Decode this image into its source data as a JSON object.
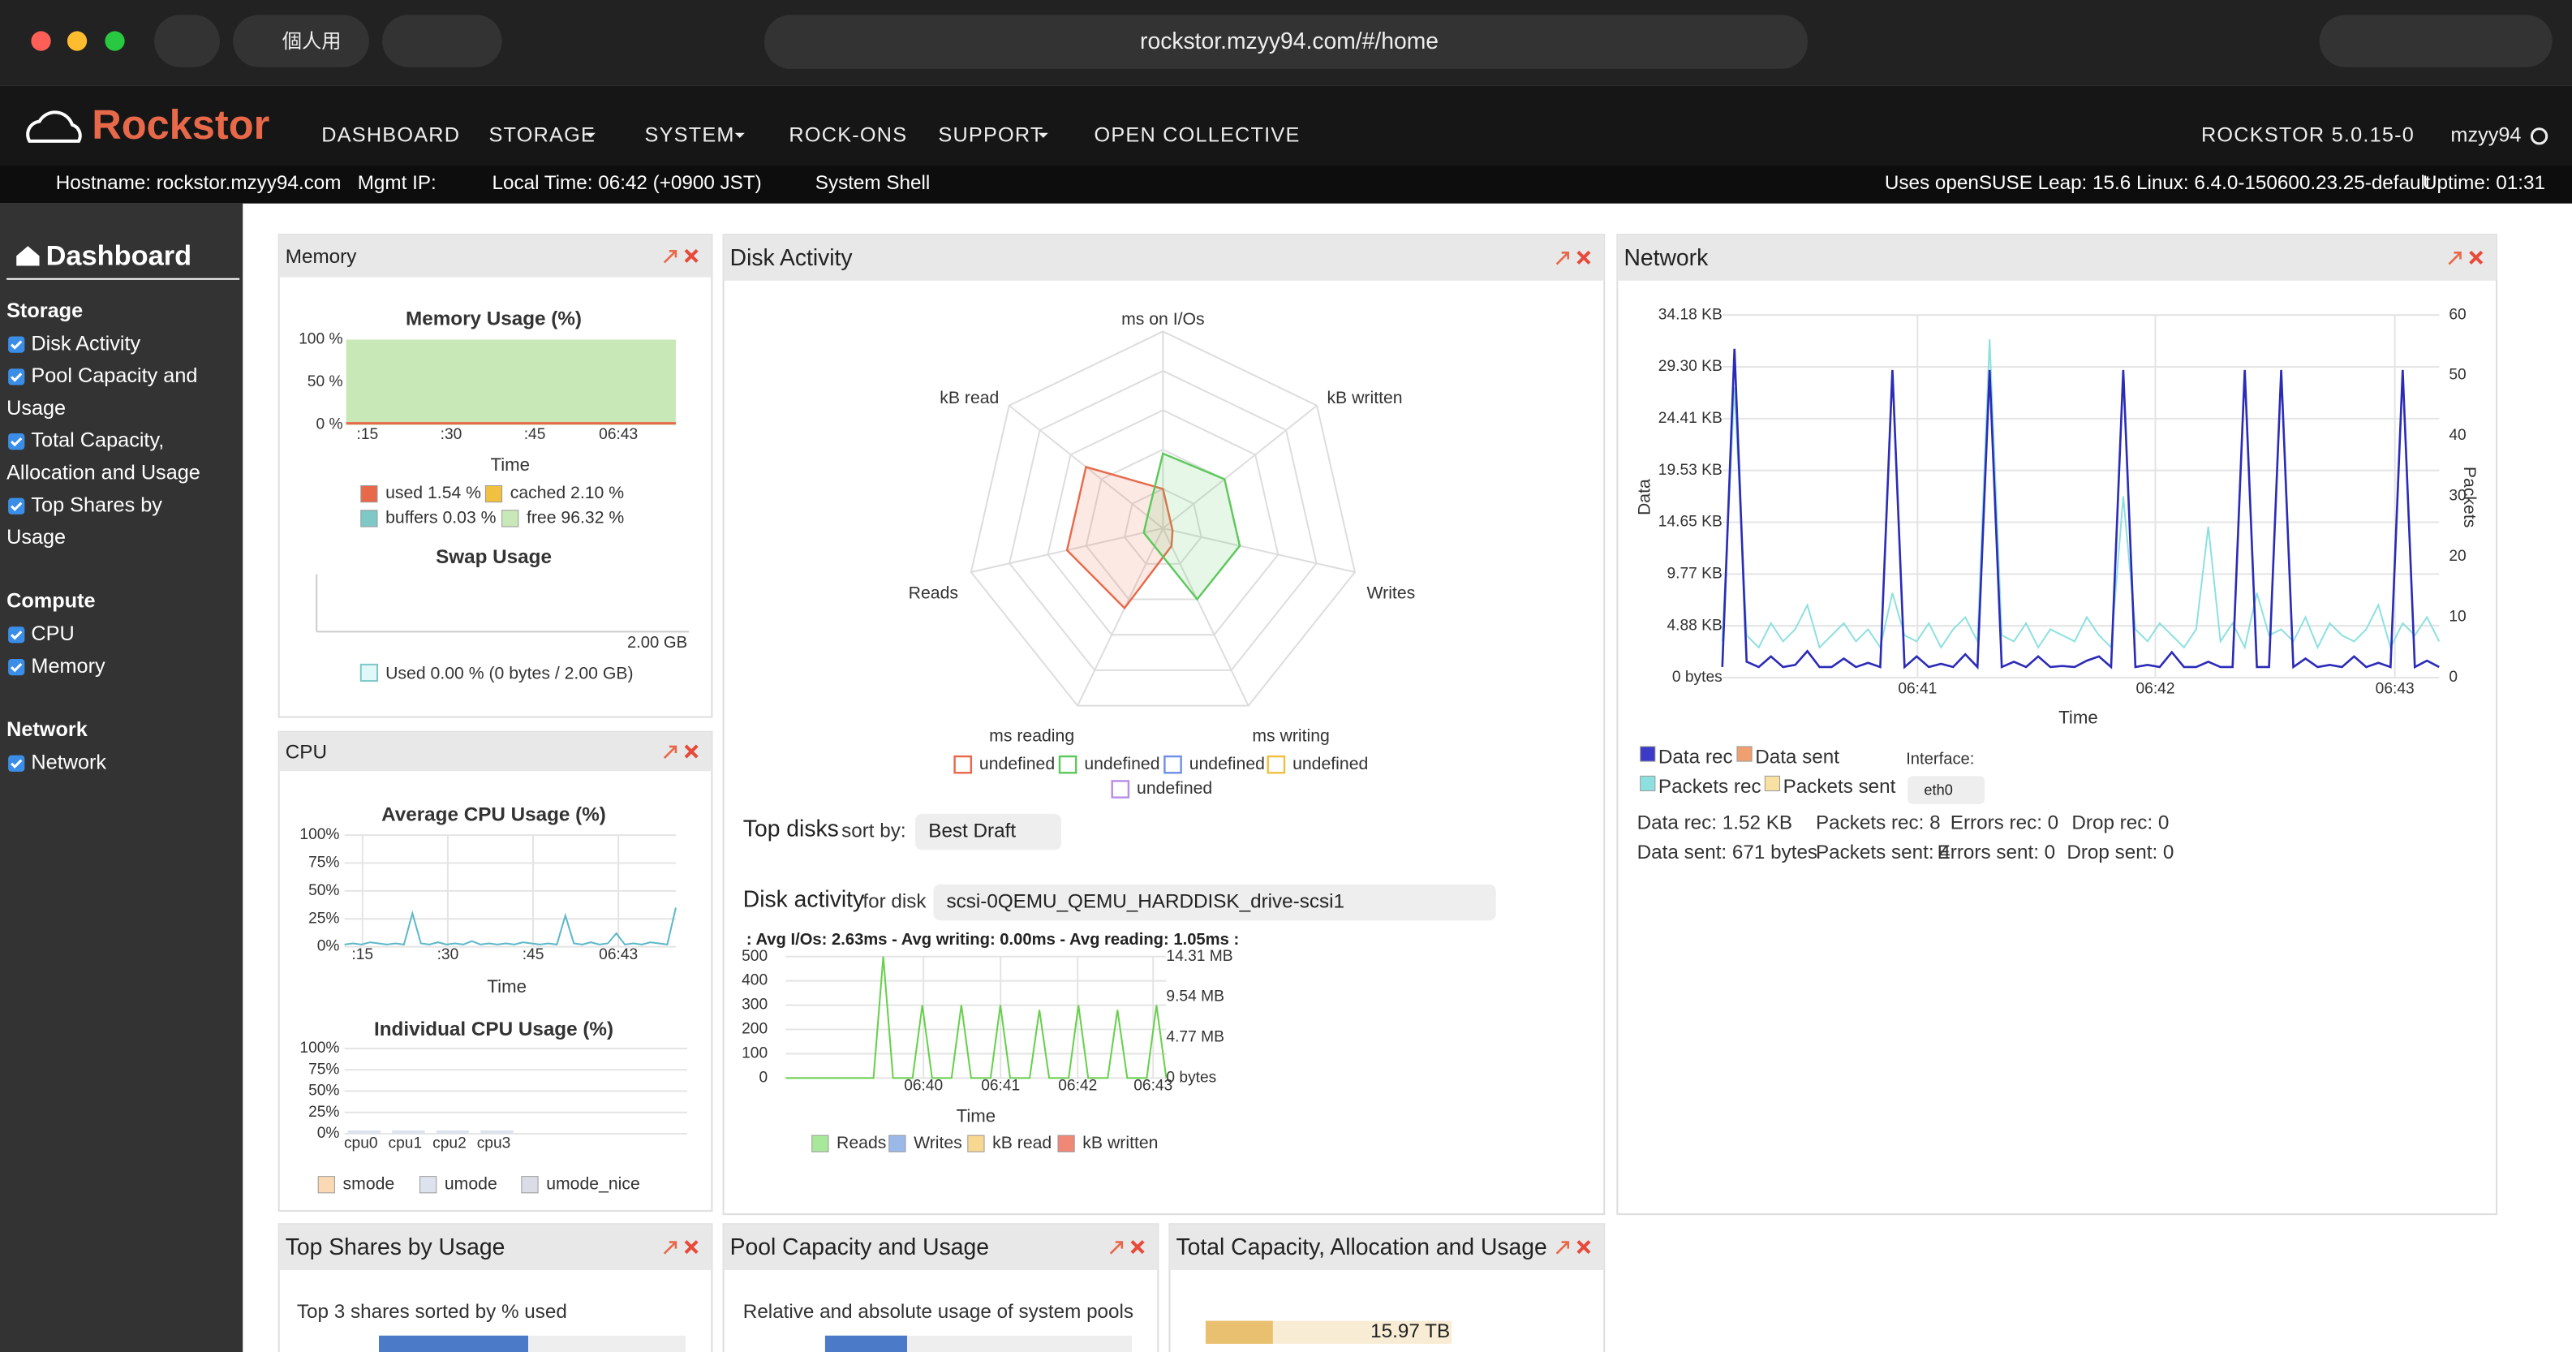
{
  "browser": {
    "profile": "個人用",
    "url": "rockstor.mzyy94.com/#/home"
  },
  "nav": {
    "brand": "Rockstor",
    "items": [
      "DASHBOARD",
      "STORAGE",
      "SYSTEM",
      "ROCK-ONS",
      "SUPPORT",
      "OPEN COLLECTIVE"
    ],
    "version": "ROCKSTOR 5.0.15-0",
    "user": "mzyy94"
  },
  "status": {
    "hostname": "Hostname: rockstor.mzyy94.com",
    "mgmt_ip": "Mgmt IP:",
    "local_time": "Local Time: 06:42 (+0900 JST)",
    "shell": "System Shell",
    "os": "Uses openSUSE Leap: 15.6  Linux: 6.4.0-150600.23.25-default",
    "uptime": "Uptime: 01:31"
  },
  "sidebar": {
    "title": "Dashboard",
    "groups": [
      {
        "title": "Storage",
        "items": [
          [
            "Disk Activity"
          ],
          [
            "Pool Capacity and",
            "Usage"
          ],
          [
            "Total Capacity,",
            "Allocation and Usage"
          ],
          [
            "Top Shares by",
            "Usage"
          ]
        ]
      },
      {
        "title": "Compute",
        "items": [
          [
            "CPU"
          ],
          [
            "Memory"
          ]
        ]
      },
      {
        "title": "Network",
        "items": [
          [
            "Network"
          ]
        ]
      }
    ]
  },
  "widgets": {
    "memory": {
      "title": "Memory",
      "chart_title": "Memory Usage (%)",
      "yticks": [
        "100 %",
        "50 %",
        "0 %"
      ],
      "xticks": [
        ":15",
        ":30",
        ":45",
        "06:43"
      ],
      "x_label": "Time",
      "legend": [
        {
          "label": "used 1.54 %",
          "color": "#e8694a"
        },
        {
          "label": "cached 2.10 %",
          "color": "#f0c040"
        },
        {
          "label": "buffers 0.03 %",
          "color": "#7ec8c8"
        },
        {
          "label": "free 96.32 %",
          "color": "#c8e8b8"
        }
      ],
      "swap_title": "Swap Usage",
      "swap_max": "2.00 GB",
      "swap_legend": "Used 0.00 % (0 bytes / 2.00 GB)"
    },
    "cpu": {
      "title": "CPU",
      "avg_title": "Average CPU Usage (%)",
      "yticks": [
        "100%",
        "75%",
        "50%",
        "25%",
        "0%"
      ],
      "xticks": [
        ":15",
        ":30",
        ":45",
        "06:43"
      ],
      "x_label": "Time",
      "ylim": [
        0,
        100
      ],
      "avg_values": [
        2,
        3,
        2,
        4,
        3,
        2,
        3,
        2,
        30,
        3,
        2,
        4,
        2,
        3,
        2,
        5,
        2,
        3,
        2,
        3,
        2,
        4,
        3,
        2,
        3,
        2,
        28,
        3,
        2,
        4,
        2,
        3,
        12,
        2,
        3,
        2,
        4,
        3,
        2,
        35
      ],
      "ind_title": "Individual CPU Usage (%)",
      "cpus": [
        "cpu0",
        "cpu1",
        "cpu2",
        "cpu3"
      ],
      "legend": [
        {
          "label": "smode",
          "color": "#fbd9b5"
        },
        {
          "label": "umode",
          "color": "#dde3ee"
        },
        {
          "label": "umode_nice",
          "color": "#dcdce6"
        }
      ]
    },
    "disk": {
      "title": "Disk Activity",
      "radar_axes": [
        "ms on I/Os",
        "kB written",
        "Writes",
        "ms writing",
        "ms reading",
        "Reads",
        "kB read"
      ],
      "radar_lim": [
        0,
        1
      ],
      "radar_series": [
        {
          "name": "undefined",
          "color": "#e8694a",
          "values": [
            0.2,
            0.05,
            0.05,
            0.1,
            0.45,
            0.5,
            0.5
          ]
        },
        {
          "name": "undefined",
          "color": "#5cc85c",
          "values": [
            0.38,
            0.4,
            0.4,
            0.4,
            0.1,
            0.1,
            0.1
          ]
        },
        {
          "name": "undefined",
          "color": "#6f8fe8"
        },
        {
          "name": "undefined",
          "color": "#f0c040"
        },
        {
          "name": "undefined",
          "color": "#b48fe8"
        }
      ],
      "top_disks": "Top disks",
      "sort_by": "sort by:",
      "sort_value": "Best Draft",
      "disk_activity": "Disk activity",
      "for_disk": "for disk",
      "disk_name": "scsi-0QEMU_QEMU_HARDDISK_drive-scsi1",
      "stats": ": Avg I/Os: 2.63ms - Avg writing: 0.00ms - Avg reading: 1.05ms :",
      "ylim": [
        0,
        500
      ],
      "yticks": [
        0,
        100,
        200,
        300,
        400,
        500
      ],
      "y2ticks": [
        "0 bytes",
        "4.77 MB",
        "9.54 MB",
        "14.31 MB"
      ],
      "xticks": [
        "06:40",
        "06:41",
        "06:42",
        "06:43"
      ],
      "x_label": "Time",
      "reads": [
        0,
        0,
        0,
        0,
        0,
        0,
        0,
        0,
        0,
        0,
        500,
        0,
        0,
        0,
        300,
        0,
        0,
        0,
        300,
        0,
        0,
        0,
        300,
        0,
        0,
        0,
        280,
        0,
        0,
        0,
        300,
        0,
        0,
        0,
        280,
        0,
        0,
        0,
        300,
        0
      ],
      "legend": [
        {
          "label": "Reads",
          "color": "#a8e89a"
        },
        {
          "label": "Writes",
          "color": "#9ab8e8"
        },
        {
          "label": "kB read",
          "color": "#f8d890"
        },
        {
          "label": "kB written",
          "color": "#f08878"
        }
      ]
    },
    "network": {
      "title": "Network",
      "yticks": [
        "0 bytes",
        "4.88 KB",
        "9.77 KB",
        "14.65 KB",
        "19.53 KB",
        "24.41 KB",
        "29.30 KB",
        "34.18 KB"
      ],
      "ylim": [
        0,
        34.18
      ],
      "y2lim": [
        0,
        60
      ],
      "y2ticks": [
        0,
        10,
        20,
        30,
        40,
        50,
        60
      ],
      "ylabel": "Data",
      "y2label": "Packets",
      "xticks": [
        "06:41",
        "06:42",
        "06:43"
      ],
      "x_label": "Time",
      "legend": [
        {
          "label": "Data rec",
          "color": "#3b3bc8"
        },
        {
          "label": "Data sent",
          "color": "#f0a070"
        },
        {
          "label": "Packets rec",
          "color": "#8ee0e0"
        },
        {
          "label": "Packets sent",
          "color": "#f8e0a0"
        }
      ],
      "interface_label": "Interface:",
      "interface": "eth0",
      "stats": [
        "Data rec: 1.52 KB",
        "Packets rec: 8",
        "Errors rec: 0",
        "Drop rec: 0",
        "Data sent: 671 bytes",
        "Packets sent: 4",
        "Errors sent: 0",
        "Drop sent: 0"
      ],
      "data_rec": [
        1,
        31,
        1.5,
        1,
        2,
        1,
        1.2,
        2.5,
        1,
        1,
        1.8,
        1,
        1.4,
        1,
        29,
        1,
        2,
        1,
        1.3,
        1,
        2.2,
        1,
        29,
        1,
        1.5,
        1,
        2,
        1,
        1.1,
        1,
        1.6,
        2,
        1,
        29,
        1,
        1.2,
        1,
        2.4,
        1,
        1,
        1.5,
        1,
        1,
        29,
        1,
        1,
        29,
        1,
        1.8,
        1,
        1.2,
        1,
        2,
        1,
        1.4,
        1,
        29,
        1,
        1.6,
        1
      ],
      "packets_rec": [
        6,
        48,
        7,
        5,
        9,
        6,
        8,
        12,
        5,
        7,
        9,
        6,
        8,
        5,
        14,
        7,
        6,
        9,
        5,
        8,
        10,
        6,
        56,
        7,
        6,
        9,
        5,
        8,
        7,
        6,
        10,
        7,
        5,
        30,
        8,
        6,
        9,
        7,
        5,
        8,
        25,
        6,
        9,
        5,
        14,
        7,
        8,
        6,
        10,
        5,
        9,
        7,
        6,
        8,
        12,
        5,
        9,
        7,
        10,
        6
      ]
    },
    "top_shares": {
      "title": "Top Shares by Usage",
      "desc": "Top 3 shares sorted by % used"
    },
    "pool": {
      "title": "Pool Capacity and Usage",
      "desc": "Relative and absolute usage of system pools"
    },
    "total": {
      "title": "Total Capacity, Allocation and Usage",
      "value": "15.97 TB"
    }
  }
}
